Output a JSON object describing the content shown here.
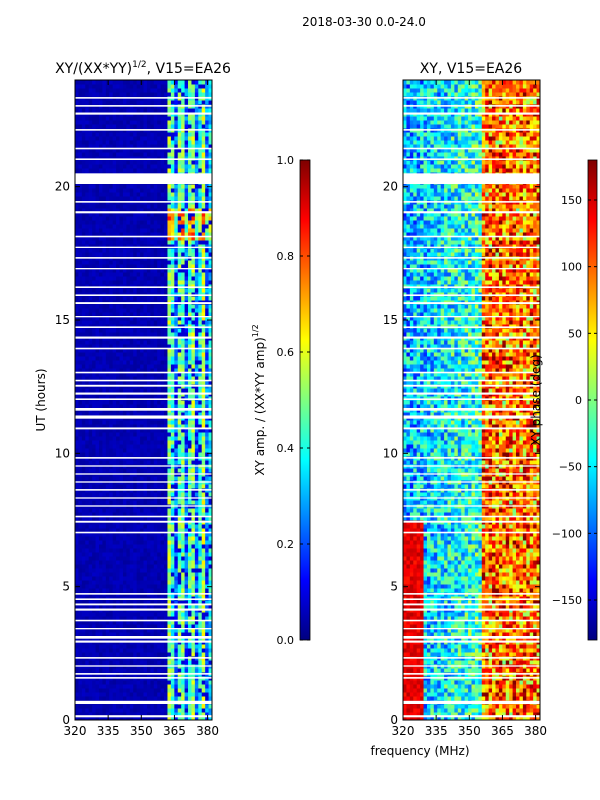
{
  "suptitle": "2018-03-30 0.0-24.0",
  "xlabel": "frequency (MHz)",
  "colors": {
    "jet": [
      "#00007f",
      "#0000ff",
      "#007fff",
      "#00ffff",
      "#7fff7f",
      "#ffff00",
      "#ff7f00",
      "#ff0000",
      "#7f0000"
    ],
    "gap": "#ffffff"
  },
  "chart_data": [
    {
      "type": "heatmap",
      "title_main": "XY/(XX*YY)",
      "title_exp": "1/2",
      "title_rest": ", V15=EA26",
      "ylabel": "UT (hours)",
      "xlim": [
        320,
        382
      ],
      "ylim": [
        0,
        24
      ],
      "xticks": [
        "320",
        "335",
        "350",
        "365",
        "380"
      ],
      "xtick_values": [
        320,
        335,
        350,
        365,
        380
      ],
      "yticks": [
        "0",
        "5",
        "10",
        "15",
        "20"
      ],
      "ytick_values": [
        0,
        5,
        10,
        15,
        20
      ],
      "pattern": "amplitude: low (~0.05) for 320-360 MHz, bright striped columns 360-378 MHz (0.3-0.6), peaks ~0.8 near 18.5 h",
      "colorbar": {
        "label_main": "XY amp. / (XX*YY amp)",
        "label_exp": "1/2",
        "range": [
          0.0,
          1.0
        ],
        "ticks": [
          "0.0",
          "0.2",
          "0.4",
          "0.6",
          "0.8",
          "1.0"
        ],
        "tick_values": [
          0.0,
          0.2,
          0.4,
          0.6,
          0.8,
          1.0
        ]
      }
    },
    {
      "type": "heatmap",
      "title_main": "XY, V15=EA26",
      "ylabel": "",
      "xlim": [
        320,
        382
      ],
      "ylim": [
        0,
        24
      ],
      "xticks": [
        "320",
        "335",
        "350",
        "365",
        "380"
      ],
      "xtick_values": [
        320,
        335,
        350,
        365,
        380
      ],
      "yticks": [
        "0",
        "5",
        "10",
        "15",
        "20"
      ],
      "ytick_values": [
        0,
        5,
        10,
        15,
        20
      ],
      "pattern": "phase: noisy, blue/cyan at low frequencies, red/orange/yellow bands toward 355-382 MHz",
      "colorbar": {
        "label_main": "XY phase (deg)",
        "range": [
          -180,
          180
        ],
        "ticks": [
          "−150",
          "−100",
          "−50",
          "0",
          "50",
          "100",
          "150"
        ],
        "tick_values": [
          -150,
          -100,
          -50,
          0,
          50,
          100,
          150
        ]
      }
    }
  ],
  "gaps_ut": [
    0.1,
    0.6,
    1.55,
    1.7,
    2.0,
    2.3,
    2.9,
    3.05,
    3.4,
    3.7,
    4.1,
    4.3,
    4.5,
    4.7,
    7.0,
    7.4,
    7.6,
    8.0,
    8.3,
    8.6,
    8.9,
    9.2,
    9.5,
    9.8,
    10.9,
    11.3,
    11.6,
    12.0,
    12.2,
    12.5,
    12.7,
    13.0,
    13.9,
    14.3,
    14.7,
    15.1,
    15.6,
    15.9,
    16.2,
    16.9,
    17.3,
    17.7,
    18.1,
    19.0,
    19.4,
    20.1,
    20.3,
    21.0,
    21.4,
    22.1,
    22.7,
    23.0,
    23.3
  ],
  "gap_heights_ut": [
    0.08,
    0.12,
    0.06,
    0.06,
    0.05,
    0.06,
    0.08,
    0.1,
    0.05,
    0.06,
    0.08,
    0.07,
    0.06,
    0.06,
    0.06,
    0.07,
    0.06,
    0.05,
    0.05,
    0.06,
    0.05,
    0.05,
    0.05,
    0.06,
    0.07,
    0.12,
    0.1,
    0.06,
    0.08,
    0.07,
    0.06,
    0.06,
    0.06,
    0.08,
    0.06,
    0.05,
    0.07,
    0.06,
    0.06,
    0.05,
    0.06,
    0.05,
    0.06,
    0.08,
    0.06,
    0.25,
    0.2,
    0.06,
    0.06,
    0.06,
    0.08,
    0.06,
    0.06
  ]
}
